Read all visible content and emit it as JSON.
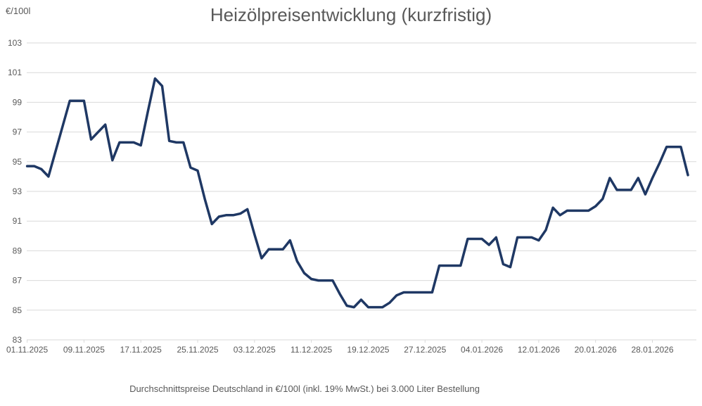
{
  "chart_data": {
    "type": "line",
    "title": "Heizölpreisentwicklung (kurzfristig)",
    "y_axis_unit_label": "€/100l",
    "subtitle": "Durchschnittspreise Deutschland in €/100l (inkl. 19% MwSt.) bei 3.000 Liter Bestellung",
    "xlabel": "",
    "ylabel": "€/100l",
    "ylim": [
      83,
      103
    ],
    "y_tick_step": 2,
    "grid": "horizontal",
    "legend_position": "none",
    "x_tick_labels": [
      "01.11.2025",
      "09.11.2025",
      "17.11.2025",
      "25.11.2025",
      "03.12.2025",
      "11.12.2025",
      "19.12.2025",
      "27.12.2025",
      "04.01.2026",
      "12.01.2026",
      "20.01.2026",
      "28.01.2026"
    ],
    "x_days_per_tick": 8,
    "x_days_per_point": 1,
    "values": [
      94.7,
      94.7,
      94.5,
      94.0,
      95.7,
      97.4,
      99.1,
      99.1,
      99.1,
      96.5,
      97.0,
      97.5,
      95.1,
      96.3,
      96.3,
      96.3,
      96.1,
      98.4,
      100.6,
      100.1,
      96.4,
      96.3,
      96.3,
      94.6,
      94.4,
      92.5,
      90.8,
      91.3,
      91.4,
      91.4,
      91.5,
      91.8,
      90.1,
      88.5,
      89.1,
      89.1,
      89.1,
      89.7,
      88.3,
      87.5,
      87.1,
      87.0,
      87.0,
      87.0,
      86.1,
      85.3,
      85.2,
      85.7,
      85.2,
      85.2,
      85.2,
      85.5,
      86.0,
      86.2,
      86.2,
      86.2,
      86.2,
      86.2,
      88.0,
      88.0,
      88.0,
      88.0,
      89.8,
      89.8,
      89.8,
      89.4,
      89.9,
      88.1,
      87.9,
      89.9,
      89.9,
      89.9,
      89.7,
      90.4,
      91.9,
      91.4,
      91.7,
      91.7,
      91.7,
      91.7,
      92.0,
      92.5,
      93.9,
      93.1,
      93.1,
      93.1,
      93.9,
      92.8,
      93.9,
      94.9,
      96.0,
      96.0,
      96.0,
      94.1
    ],
    "colors": {
      "line": "#1F3864",
      "grid": "#D9D9D9",
      "text": "#595959",
      "background": "#FFFFFF"
    }
  }
}
